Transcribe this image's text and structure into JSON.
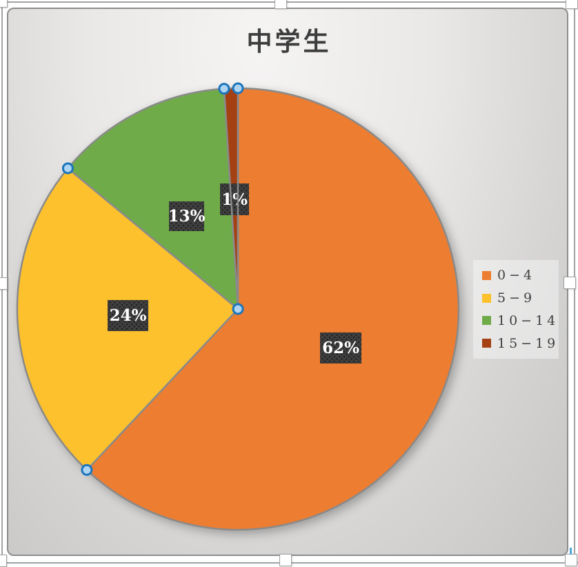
{
  "chart_data": {
    "type": "pie",
    "title": "中学生",
    "categories": [
      "0−4",
      "5−9",
      "10−14",
      "15−19"
    ],
    "values": [
      62,
      24,
      13,
      1
    ],
    "unit": "%",
    "slice_labels": [
      "62%",
      "24%",
      "13%",
      "1%"
    ],
    "colors": [
      "#ED7D31",
      "#FCC12D",
      "#6FAC49",
      "#A44012"
    ],
    "outline_color": "#8A8A8A",
    "legend_position": "right",
    "start_angle_deg": 0,
    "direction": "clockwise",
    "label_style": "dark-dotted-box, white bold text"
  },
  "legend": {
    "items": [
      {
        "label": "0−4",
        "color": "#ED7D31"
      },
      {
        "label": "5−9",
        "color": "#FCC12D"
      },
      {
        "label": "10−14",
        "color": "#6FAC49"
      },
      {
        "label": "15−19",
        "color": "#A44012"
      }
    ]
  },
  "selection": {
    "state": "chart selected, pie series selected",
    "vertex_handle_fill": "#AED4F2",
    "vertex_handle_stroke": "#1B75BC"
  }
}
